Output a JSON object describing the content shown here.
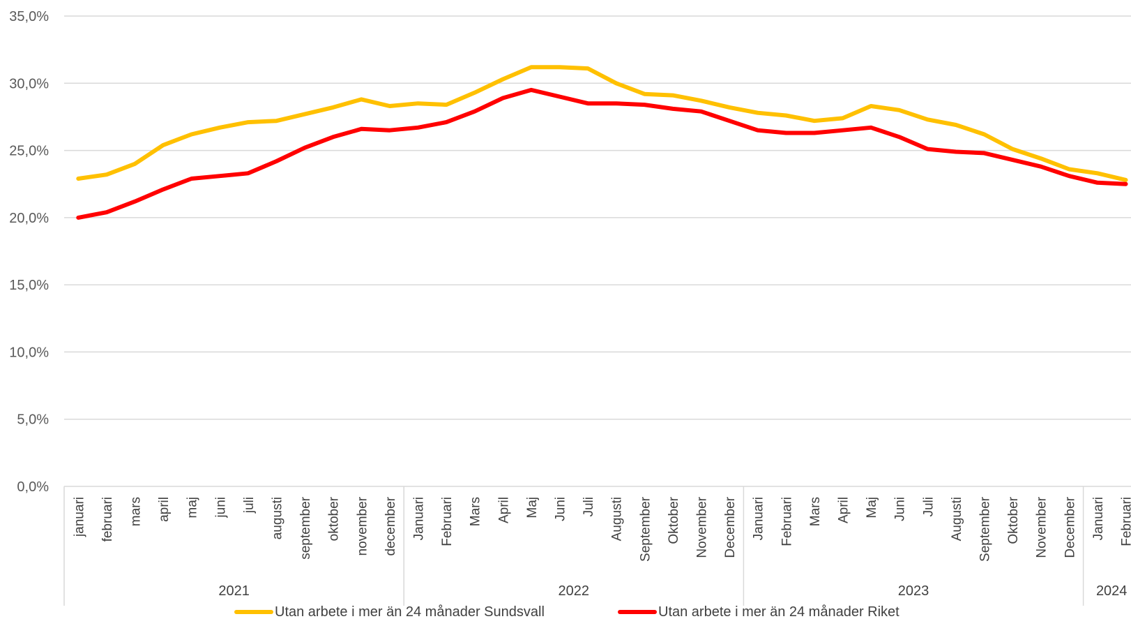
{
  "chart_data": {
    "type": "line",
    "title": "",
    "xlabel": "",
    "ylabel": "",
    "ylim": [
      0,
      35
    ],
    "yticks": [
      "0,0%",
      "5,0%",
      "10,0%",
      "15,0%",
      "20,0%",
      "25,0%",
      "30,0%",
      "35,0%"
    ],
    "grid": true,
    "legend_position": "bottom",
    "year_groups": [
      {
        "label": "2021",
        "count": 12
      },
      {
        "label": "2022",
        "count": 12
      },
      {
        "label": "2023",
        "count": 12
      },
      {
        "label": "2024",
        "count": 2
      }
    ],
    "categories": [
      "januari",
      "februari",
      "mars",
      "april",
      "maj",
      "juni",
      "juli",
      "augusti",
      "september",
      "oktober",
      "november",
      "december",
      "Januari",
      "Februari",
      "Mars",
      "April",
      "Maj",
      "Juni",
      "Juli",
      "Augusti",
      "September",
      "Oktober",
      "November",
      "December",
      "Januari",
      "Februari",
      "Mars",
      "April",
      "Maj",
      "Juni",
      "Juli",
      "Augusti",
      "September",
      "Oktober",
      "November",
      "December",
      "Januari",
      "Februari"
    ],
    "series": [
      {
        "name": "Utan arbete i mer än 24 månader Sundsvall",
        "color": "#FFC000",
        "values": [
          22.9,
          23.2,
          24.0,
          25.4,
          26.2,
          26.7,
          27.1,
          27.2,
          27.7,
          28.2,
          28.8,
          28.3,
          28.5,
          28.4,
          29.3,
          30.3,
          31.2,
          31.2,
          31.1,
          30.0,
          29.2,
          29.1,
          28.7,
          28.2,
          27.8,
          27.6,
          27.2,
          27.4,
          28.3,
          28.0,
          27.3,
          26.9,
          26.2,
          25.1,
          24.4,
          23.6,
          23.3,
          22.8
        ]
      },
      {
        "name": "Utan arbete i mer än 24 månader Riket",
        "color": "#FF0000",
        "values": [
          20.0,
          20.4,
          21.2,
          22.1,
          22.9,
          23.1,
          23.3,
          24.2,
          25.2,
          26.0,
          26.6,
          26.5,
          26.7,
          27.1,
          27.9,
          28.9,
          29.5,
          29.0,
          28.5,
          28.5,
          28.4,
          28.1,
          27.9,
          27.2,
          26.5,
          26.3,
          26.3,
          26.5,
          26.7,
          26.0,
          25.1,
          24.9,
          24.8,
          24.3,
          23.8,
          23.1,
          22.6,
          22.5
        ]
      }
    ]
  }
}
